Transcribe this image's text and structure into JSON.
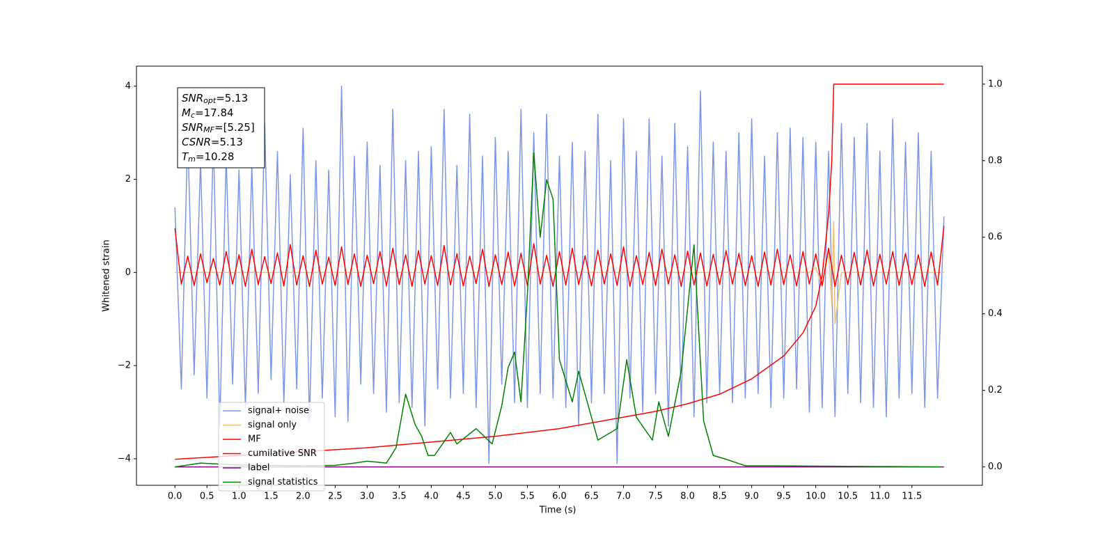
{
  "chart_data": {
    "type": "line",
    "xlabel": "Time (s)",
    "ylabel": "Whitened strain",
    "xlim": [
      -0.6,
      12.6
    ],
    "ylim": [
      -4.57,
      4.43
    ],
    "y2lim": [
      -0.048,
      1.047
    ],
    "xticks": [
      {
        "value": 0,
        "label": "0.0"
      },
      0.5,
      {
        "value": 1,
        "label": "1.0"
      },
      1.5,
      {
        "value": 2,
        "label": "2.0"
      },
      2.5,
      {
        "value": 3,
        "label": "3.0"
      },
      3.5,
      {
        "value": 4,
        "label": "4.0"
      },
      4.5,
      {
        "value": 5,
        "label": "5.0"
      },
      5.5,
      {
        "value": 6,
        "label": "6.0"
      },
      6.5,
      {
        "value": 7,
        "label": "7.0"
      },
      7.5,
      {
        "value": 8,
        "label": "8.0"
      },
      8.5,
      {
        "value": 9,
        "label": "9.0"
      },
      9.5,
      {
        "value": 10,
        "label": "10.0"
      },
      10.5,
      {
        "value": 11,
        "label": "11.0"
      },
      11.5
    ],
    "yticks": [
      {
        "value": -4,
        "label": "−4"
      },
      {
        "value": -2,
        "label": "−2"
      },
      0,
      2,
      4
    ],
    "y2ticks": [
      {
        "value": 0,
        "label": "0.0"
      },
      0.2,
      0.4,
      0.6,
      0.8,
      {
        "value": 1,
        "label": "1.0"
      }
    ],
    "legend": "lower left",
    "annotation": [
      {
        "symbol": "SNR",
        "subscript": "opt",
        "text": "=5.13"
      },
      {
        "symbol": "M",
        "subscript": "c",
        "text": "=17.84"
      },
      {
        "symbol": "SNR",
        "subscript": "MF",
        "text": "=[5.25]"
      },
      {
        "symbol": "CSNR",
        "text": "=5.13"
      },
      {
        "symbol": "T",
        "subscript": "m",
        "text": "=10.28"
      }
    ],
    "x": [
      0,
      0.1,
      0.2,
      0.3,
      0.4,
      0.5,
      0.6,
      0.7,
      0.8,
      0.9,
      1,
      1.1,
      1.2,
      1.3,
      1.4,
      1.5,
      1.6,
      1.7,
      1.8,
      1.9,
      2,
      2.1,
      2.2,
      2.3,
      2.4,
      2.5,
      2.6,
      2.7,
      2.8,
      2.9,
      3,
      3.1,
      3.2,
      3.3,
      3.4,
      3.5,
      3.6,
      3.7,
      3.8,
      3.9,
      4,
      4.1,
      4.2,
      4.3,
      4.4,
      4.5,
      4.6,
      4.7,
      4.8,
      4.9,
      5,
      5.1,
      5.2,
      5.3,
      5.4,
      5.5,
      5.6,
      5.7,
      5.8,
      5.9,
      6,
      6.1,
      6.2,
      6.3,
      6.4,
      6.5,
      6.6,
      6.7,
      6.8,
      6.9,
      7,
      7.1,
      7.2,
      7.3,
      7.4,
      7.5,
      7.6,
      7.7,
      7.8,
      7.9,
      8,
      8.1,
      8.2,
      8.3,
      8.4,
      8.5,
      8.6,
      8.7,
      8.8,
      8.9,
      9,
      9.1,
      9.2,
      9.3,
      9.4,
      9.5,
      9.6,
      9.7,
      9.8,
      9.9,
      10,
      10.1,
      10.2,
      10.3,
      10.4,
      10.5,
      10.6,
      10.7,
      10.8,
      10.9,
      11,
      11.1,
      11.2,
      11.3,
      11.4,
      11.5,
      11.6,
      11.7,
      11.8,
      11.9,
      12
    ],
    "series": [
      {
        "name": "signal+ noise",
        "color": "#7b96e8",
        "values": [
          1.4,
          -2.5,
          3.0,
          -2.2,
          2.4,
          -2.7,
          2.9,
          -3.3,
          2.5,
          -2.4,
          2.2,
          -2.9,
          2.3,
          -2.6,
          3.2,
          -2.3,
          2.6,
          -2.8,
          2.1,
          -2.5,
          3.1,
          -3.2,
          2.4,
          -2.7,
          2.2,
          -3.1,
          4.0,
          -3.2,
          2.5,
          -2.4,
          2.8,
          -2.6,
          2.3,
          -3.0,
          3.5,
          -2.8,
          2.4,
          -2.9,
          2.6,
          -3.3,
          2.7,
          -2.5,
          3.5,
          -2.7,
          2.3,
          -2.6,
          3.4,
          -2.9,
          2.5,
          -4.1,
          2.9,
          -2.4,
          2.6,
          -2.8,
          3.5,
          -2.9,
          3.0,
          -2.6,
          3.4,
          -2.7,
          2.5,
          -2.9,
          2.8,
          -3.3,
          2.6,
          -2.8,
          3.4,
          -2.6,
          2.4,
          -4.1,
          3.3,
          -2.7,
          2.6,
          -3.0,
          3.3,
          -2.6,
          2.5,
          -3.3,
          3.2,
          -2.9,
          2.7,
          -3.1,
          3.9,
          -2.8,
          2.8,
          -2.6,
          2.6,
          -2.8,
          3.0,
          -2.7,
          3.3,
          -2.6,
          2.5,
          -2.9,
          3.0,
          -2.7,
          3.1,
          -2.5,
          2.9,
          -3.0,
          2.8,
          -2.9,
          2.6,
          -3.1,
          3.2,
          -2.6,
          2.9,
          -2.8,
          3.2,
          -2.9,
          2.6,
          -3.1,
          3.3,
          -2.7,
          2.8,
          -2.6,
          3.0,
          -2.9,
          2.6,
          -2.7,
          1.2
        ]
      },
      {
        "name": "signal only",
        "color": "#f0c070",
        "x": [
          0,
          9.9,
          10,
          10.1,
          10.2,
          10.25,
          10.28,
          10.3,
          10.4,
          12
        ],
        "values": [
          0,
          0,
          0.1,
          -0.3,
          0.5,
          -0.7,
          1.1,
          -1.1,
          0,
          0
        ]
      },
      {
        "name": "MF",
        "color": "#ff0000",
        "values": [
          0.95,
          -0.25,
          0.35,
          -0.28,
          0.4,
          -0.22,
          0.3,
          -0.27,
          0.45,
          -0.25,
          0.38,
          -0.3,
          0.5,
          -0.26,
          0.34,
          -0.24,
          0.42,
          -0.29,
          0.6,
          -0.27,
          0.36,
          -0.3,
          0.48,
          -0.25,
          0.33,
          -0.28,
          0.55,
          -0.26,
          0.4,
          -0.3,
          0.37,
          -0.24,
          0.45,
          -0.29,
          0.52,
          -0.26,
          0.38,
          -0.3,
          0.47,
          -0.25,
          0.36,
          -0.28,
          0.58,
          -0.27,
          0.4,
          -0.29,
          0.35,
          -0.24,
          0.5,
          -0.3,
          0.38,
          -0.26,
          0.44,
          -0.29,
          0.41,
          -0.28,
          0.62,
          -0.25,
          0.37,
          -0.3,
          0.45,
          -0.27,
          0.52,
          -0.26,
          0.36,
          -0.29,
          0.48,
          -0.25,
          0.4,
          -0.28,
          0.55,
          -0.3,
          0.36,
          -0.26,
          0.43,
          -0.28,
          0.5,
          -0.25,
          0.38,
          -0.3,
          0.46,
          -0.27,
          0.42,
          -0.29,
          0.39,
          -0.26,
          0.47,
          -0.25,
          0.41,
          -0.28,
          0.36,
          -0.3,
          0.44,
          -0.27,
          0.5,
          -0.26,
          0.38,
          -0.29,
          0.45,
          -0.25,
          0.4,
          -0.28,
          0.52,
          -0.3,
          0.37,
          -0.26,
          0.43,
          -0.27,
          0.48,
          -0.29,
          0.39,
          -0.25,
          0.45,
          -0.28,
          0.41,
          -0.26,
          0.38,
          -0.3,
          0.44,
          -0.27,
          1.0
        ]
      },
      {
        "name": "cumilative SNR",
        "color": "#ff0000",
        "axis": "y2",
        "x": [
          0,
          1,
          2,
          3,
          4,
          5,
          6,
          7,
          7.5,
          8,
          8.5,
          9,
          9.5,
          9.8,
          10,
          10.1,
          10.2,
          10.25,
          10.28,
          11,
          12
        ],
        "values": [
          0.02,
          0.03,
          0.04,
          0.05,
          0.065,
          0.08,
          0.1,
          0.13,
          0.145,
          0.165,
          0.19,
          0.23,
          0.29,
          0.35,
          0.42,
          0.5,
          0.66,
          0.8,
          1.0,
          1.0,
          1.0
        ]
      },
      {
        "name": "label",
        "color": "#800080",
        "axis": "y2",
        "x": [
          0,
          12
        ],
        "values": [
          0,
          0
        ]
      },
      {
        "name": "signal statistics",
        "color": "#008000",
        "axis": "y2",
        "x": [
          0,
          0.4,
          1.0,
          2.0,
          2.5,
          2.8,
          3.0,
          3.3,
          3.45,
          3.6,
          3.75,
          3.85,
          3.95,
          4.05,
          4.3,
          4.4,
          4.7,
          4.95,
          5.1,
          5.2,
          5.3,
          5.4,
          5.5,
          5.6,
          5.7,
          5.8,
          5.9,
          6.0,
          6.2,
          6.3,
          6.5,
          6.6,
          6.9,
          7.05,
          7.2,
          7.45,
          7.55,
          7.7,
          7.9,
          8.1,
          8.25,
          8.4,
          8.6,
          8.9,
          9.3,
          11.95
        ],
        "values": [
          0,
          0.01,
          0.005,
          0.003,
          0.004,
          0.01,
          0.015,
          0.01,
          0.05,
          0.19,
          0.11,
          0.08,
          0.03,
          0.03,
          0.09,
          0.06,
          0.1,
          0.06,
          0.16,
          0.26,
          0.3,
          0.17,
          0.45,
          0.82,
          0.6,
          0.75,
          0.7,
          0.28,
          0.17,
          0.25,
          0.13,
          0.07,
          0.1,
          0.28,
          0.13,
          0.07,
          0.17,
          0.08,
          0.25,
          0.58,
          0.12,
          0.03,
          0.02,
          0.003,
          0.003,
          0
        ]
      }
    ]
  }
}
